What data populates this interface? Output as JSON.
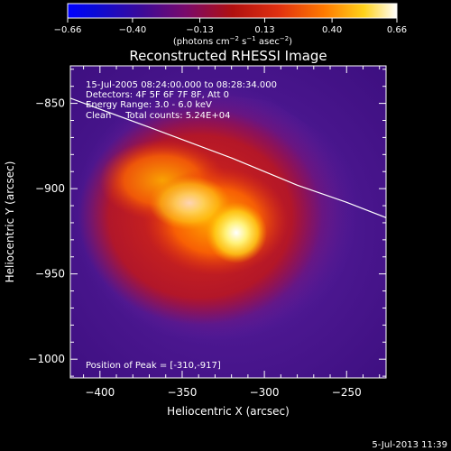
{
  "chart_data": {
    "type": "heatmap",
    "title": "Reconstructed RHESSI Image",
    "xlabel": "Heliocentric X (arcsec)",
    "ylabel": "Heliocentric Y (arcsec)",
    "xlim": [
      -418,
      -226
    ],
    "ylim": [
      -1011,
      -828
    ],
    "x_ticks": [
      -400,
      -350,
      -300,
      -250
    ],
    "y_ticks": [
      -850,
      -900,
      -950,
      -1000
    ],
    "colorbar": {
      "range": [
        -0.66,
        0.66
      ],
      "ticks": [
        -0.66,
        -0.4,
        -0.13,
        0.13,
        0.4,
        0.66
      ],
      "tick_labels": [
        "−0.66",
        "−0.40",
        "−0.13",
        "0.13",
        "0.40",
        "0.66"
      ],
      "units_parts": [
        "(photons cm",
        "−2",
        " s",
        "−1",
        " asec",
        "−2",
        ")"
      ]
    },
    "annotations": [
      "15-Jul-2005 08:24:00.000 to 08:28:34.000",
      "Detectors: 4F 5F 6F 7F 8F, Att 0",
      "Energy Range: 3.0 - 6.0 keV",
      "Clean     Total counts: 5.24E+04"
    ],
    "peak_label": "Position of Peak = [-310,-917]",
    "peak": [
      -310,
      -917
    ],
    "limb_curve": [
      [
        -418,
        -847
      ],
      [
        -370,
        -864
      ],
      [
        -320,
        -882
      ],
      [
        -280,
        -898
      ],
      [
        -250,
        -908
      ],
      [
        -226,
        -917
      ]
    ],
    "footer": "5-Jul-2013 11:39"
  }
}
